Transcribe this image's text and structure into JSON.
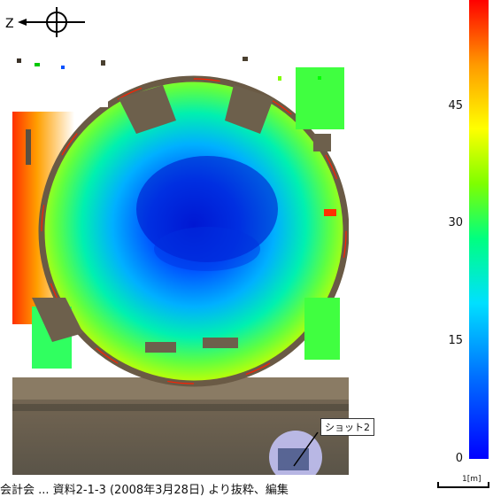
{
  "north_arrow": {
    "label": "Z"
  },
  "map": {
    "shot_label": "ショット2"
  },
  "colorbar": {
    "ticks": [
      "45",
      "30",
      "15",
      "0"
    ],
    "min": 0,
    "max": 55,
    "colors": {
      "low": "#0000ff",
      "mid": "#00ff80",
      "high": "#ff0000"
    }
  },
  "scale": {
    "label": "1[m]"
  },
  "footer": {
    "text": "会計会 ... 資料2-1-3 (2008年3月28日) より抜粋、編集"
  }
}
